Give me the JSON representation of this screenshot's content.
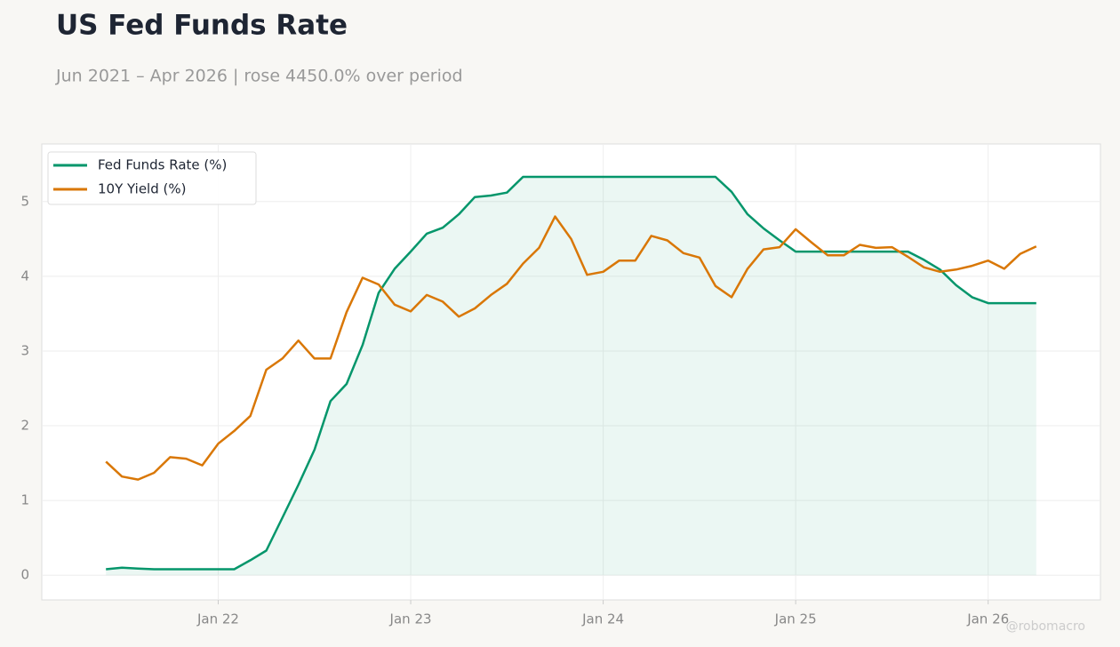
{
  "chart_data": {
    "type": "line",
    "title": "US Fed Funds Rate",
    "subtitle": "Jun 2021 – Apr 2026 | rose 4450.0% over period",
    "watermark": "@robomacro",
    "x": [
      "2021-06",
      "2021-07",
      "2021-08",
      "2021-09",
      "2021-10",
      "2021-11",
      "2021-12",
      "2022-01",
      "2022-02",
      "2022-03",
      "2022-04",
      "2022-05",
      "2022-06",
      "2022-07",
      "2022-08",
      "2022-09",
      "2022-10",
      "2022-11",
      "2022-12",
      "2023-01",
      "2023-02",
      "2023-03",
      "2023-04",
      "2023-05",
      "2023-06",
      "2023-07",
      "2023-08",
      "2023-09",
      "2023-10",
      "2023-11",
      "2023-12",
      "2024-01",
      "2024-02",
      "2024-03",
      "2024-04",
      "2024-05",
      "2024-06",
      "2024-07",
      "2024-08",
      "2024-09",
      "2024-10",
      "2024-11",
      "2024-12",
      "2025-01",
      "2025-02",
      "2025-03",
      "2025-04",
      "2025-05",
      "2025-06",
      "2025-07",
      "2025-08",
      "2025-09",
      "2025-10",
      "2025-11",
      "2025-12",
      "2026-01",
      "2026-02",
      "2026-03",
      "2026-04"
    ],
    "series": [
      {
        "name": "Fed Funds Rate (%)",
        "color": "#05966b",
        "fill": true,
        "values": [
          0.08,
          0.1,
          0.09,
          0.08,
          0.08,
          0.08,
          0.08,
          0.08,
          0.08,
          0.2,
          0.33,
          0.77,
          1.21,
          1.68,
          2.33,
          2.56,
          3.08,
          3.78,
          4.1,
          4.33,
          4.57,
          4.65,
          4.83,
          5.06,
          5.08,
          5.12,
          5.33,
          5.33,
          5.33,
          5.33,
          5.33,
          5.33,
          5.33,
          5.33,
          5.33,
          5.33,
          5.33,
          5.33,
          5.33,
          5.13,
          4.83,
          4.64,
          4.48,
          4.33,
          4.33,
          4.33,
          4.33,
          4.33,
          4.33,
          4.33,
          4.33,
          4.22,
          4.09,
          3.88,
          3.72,
          3.64,
          3.64,
          3.64,
          3.64
        ]
      },
      {
        "name": "10Y Yield (%)",
        "color": "#d97706",
        "fill": false,
        "values": [
          1.52,
          1.32,
          1.28,
          1.37,
          1.58,
          1.56,
          1.47,
          1.76,
          1.93,
          2.13,
          2.75,
          2.9,
          3.14,
          2.9,
          2.9,
          3.52,
          3.98,
          3.89,
          3.62,
          3.53,
          3.75,
          3.66,
          3.46,
          3.57,
          3.75,
          3.9,
          4.17,
          4.38,
          4.8,
          4.5,
          4.02,
          4.06,
          4.21,
          4.21,
          4.54,
          4.48,
          4.31,
          4.25,
          3.87,
          3.72,
          4.1,
          4.36,
          4.39,
          4.63,
          4.45,
          4.28,
          4.28,
          4.42,
          4.38,
          4.39,
          4.26,
          4.12,
          4.06,
          4.09,
          4.14,
          4.21,
          4.1,
          4.3,
          4.4
        ]
      }
    ],
    "xlim": [
      "2021-02",
      "2026-08"
    ],
    "xticks": [
      {
        "value": "2022-01",
        "label": "Jan 22"
      },
      {
        "value": "2023-01",
        "label": "Jan 23"
      },
      {
        "value": "2024-01",
        "label": "Jan 24"
      },
      {
        "value": "2025-01",
        "label": "Jan 25"
      },
      {
        "value": "2026-01",
        "label": "Jan 26"
      }
    ],
    "ylim": [
      -0.33,
      5.77
    ],
    "yticks": [
      0,
      1,
      2,
      3,
      4,
      5
    ],
    "grid": true,
    "legend": "upper-left"
  }
}
